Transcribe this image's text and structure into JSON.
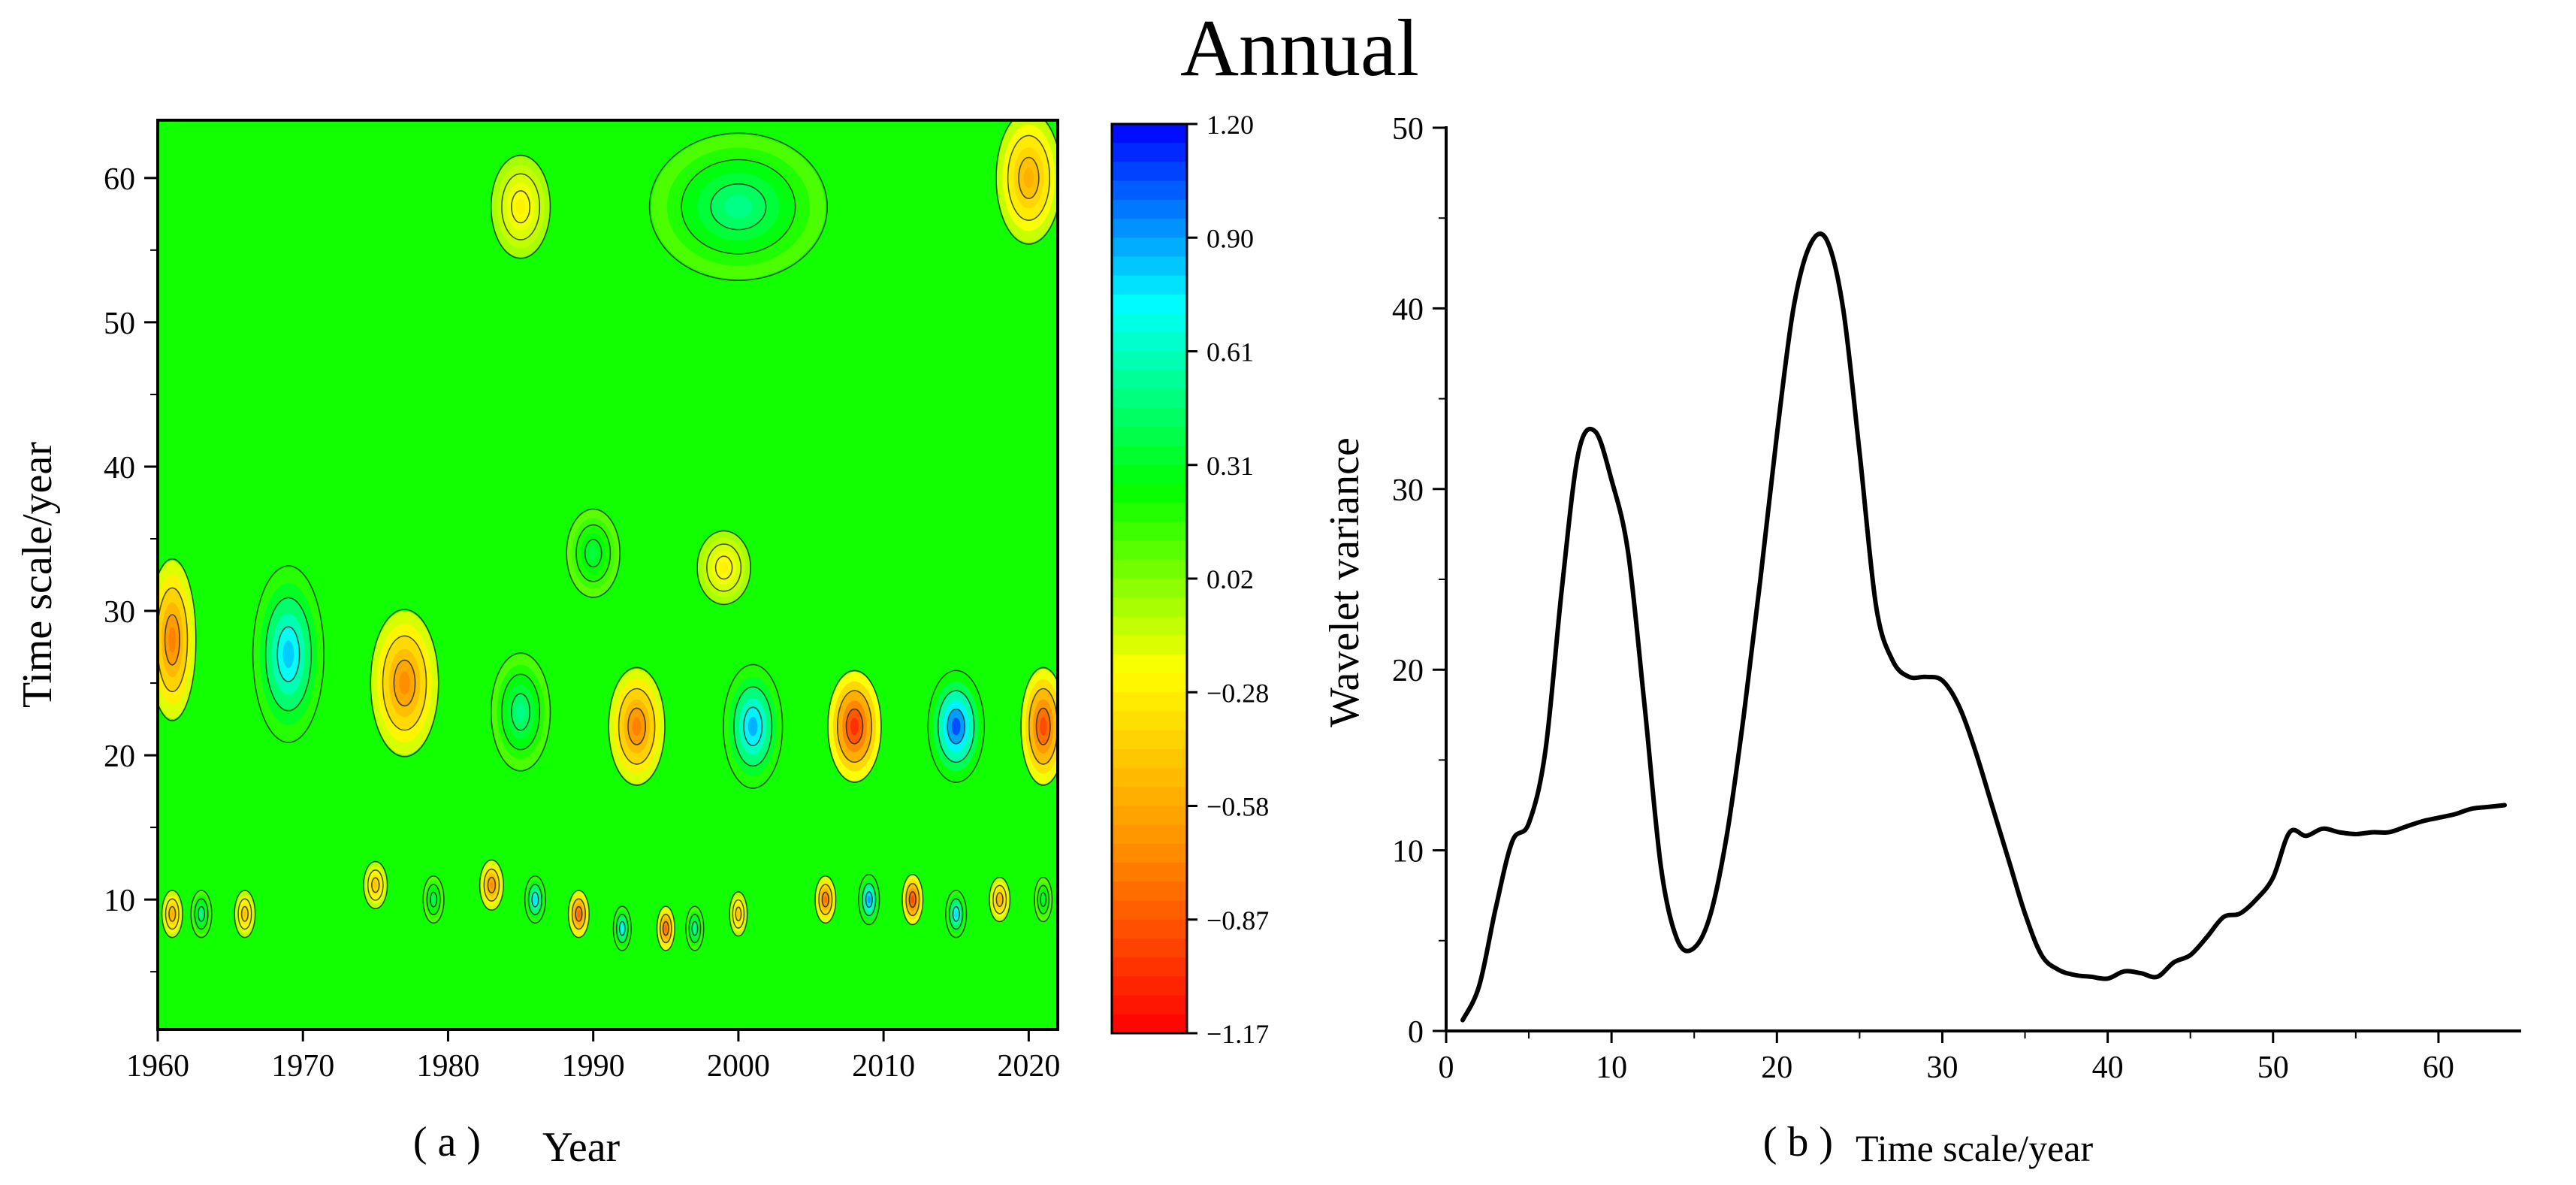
{
  "title": "Annual",
  "colors": {
    "colormap": [
      "#ff0000",
      "#ff8c00",
      "#ffff00",
      "#00ff00",
      "#00ffff",
      "#0000ff"
    ],
    "field_background": "#11ff00",
    "line": "#000000"
  },
  "chart_data": [
    {
      "type": "heatmap",
      "panel": "(a)",
      "panel_label": "( a )",
      "xlabel": "Year",
      "ylabel": "Time scale/year",
      "xlim": [
        1960,
        2022
      ],
      "ylim": [
        1,
        64
      ],
      "xticks": [
        1960,
        1970,
        1980,
        1990,
        2000,
        2010,
        2020
      ],
      "yticks": [
        10,
        20,
        30,
        40,
        50,
        60
      ],
      "colorbar": {
        "ticks": [
          "1.20",
          "0.90",
          "0.61",
          "0.31",
          "0.02",
          "−0.28",
          "−0.58",
          "−0.87",
          "−1.17"
        ],
        "range": [
          -1.17,
          1.2
        ]
      },
      "features": [
        {
          "year": 1961,
          "scale": 28,
          "value": -0.8,
          "sy": 1.6,
          "ss": 5.5
        },
        {
          "year": 1969,
          "scale": 27,
          "value": 0.9,
          "sy": 2.4,
          "ss": 6.0
        },
        {
          "year": 1977,
          "scale": 25,
          "value": -0.75,
          "sy": 2.3,
          "ss": 5.0
        },
        {
          "year": 1985,
          "scale": 23,
          "value": 0.55,
          "sy": 2.0,
          "ss": 4.0
        },
        {
          "year": 1993,
          "scale": 22,
          "value": -0.8,
          "sy": 1.9,
          "ss": 4.0
        },
        {
          "year": 2001,
          "scale": 22,
          "value": 0.95,
          "sy": 2.0,
          "ss": 4.2
        },
        {
          "year": 2008,
          "scale": 22,
          "value": -1.1,
          "sy": 1.8,
          "ss": 3.8
        },
        {
          "year": 2015,
          "scale": 22,
          "value": 1.15,
          "sy": 1.9,
          "ss": 3.8
        },
        {
          "year": 2021,
          "scale": 22,
          "value": -1.0,
          "sy": 1.5,
          "ss": 4.0
        },
        {
          "year": 2000,
          "scale": 58,
          "value": 0.55,
          "sy": 6.0,
          "ss": 5.0
        },
        {
          "year": 2020,
          "scale": 60,
          "value": -0.6,
          "sy": 2.2,
          "ss": 4.5
        },
        {
          "year": 1985,
          "scale": 58,
          "value": -0.3,
          "sy": 2.0,
          "ss": 3.5
        },
        {
          "year": 1999,
          "scale": 33,
          "value": -0.3,
          "sy": 1.8,
          "ss": 2.5
        },
        {
          "year": 1990,
          "scale": 34,
          "value": 0.4,
          "sy": 1.8,
          "ss": 3.0
        },
        {
          "year": 1961,
          "scale": 9,
          "value": -0.6,
          "sy": 0.7,
          "ss": 1.6
        },
        {
          "year": 1963,
          "scale": 9,
          "value": 0.55,
          "sy": 0.7,
          "ss": 1.6
        },
        {
          "year": 1966,
          "scale": 9,
          "value": -0.5,
          "sy": 0.7,
          "ss": 1.6
        },
        {
          "year": 1975,
          "scale": 11,
          "value": -0.5,
          "sy": 0.8,
          "ss": 1.6
        },
        {
          "year": 1979,
          "scale": 10,
          "value": 0.45,
          "sy": 0.7,
          "ss": 1.6
        },
        {
          "year": 1983,
          "scale": 11,
          "value": -0.75,
          "sy": 0.8,
          "ss": 1.7
        },
        {
          "year": 1986,
          "scale": 10,
          "value": 0.85,
          "sy": 0.7,
          "ss": 1.6
        },
        {
          "year": 1989,
          "scale": 9,
          "value": -0.9,
          "sy": 0.7,
          "ss": 1.6
        },
        {
          "year": 1992,
          "scale": 8,
          "value": 0.8,
          "sy": 0.6,
          "ss": 1.5
        },
        {
          "year": 1995,
          "scale": 8,
          "value": -0.9,
          "sy": 0.6,
          "ss": 1.5
        },
        {
          "year": 1997,
          "scale": 8,
          "value": 0.6,
          "sy": 0.6,
          "ss": 1.5
        },
        {
          "year": 2000,
          "scale": 9,
          "value": -0.5,
          "sy": 0.6,
          "ss": 1.5
        },
        {
          "year": 2006,
          "scale": 10,
          "value": -0.85,
          "sy": 0.7,
          "ss": 1.6
        },
        {
          "year": 2009,
          "scale": 10,
          "value": 1.0,
          "sy": 0.7,
          "ss": 1.7
        },
        {
          "year": 2012,
          "scale": 10,
          "value": -1.0,
          "sy": 0.7,
          "ss": 1.7
        },
        {
          "year": 2015,
          "scale": 9,
          "value": 0.85,
          "sy": 0.7,
          "ss": 1.6
        },
        {
          "year": 2018,
          "scale": 10,
          "value": -0.6,
          "sy": 0.7,
          "ss": 1.5
        },
        {
          "year": 2021,
          "scale": 10,
          "value": 0.4,
          "sy": 0.6,
          "ss": 1.5
        }
      ]
    },
    {
      "type": "line",
      "panel": "(b)",
      "panel_label": "( b )",
      "xlabel": "Time scale/year",
      "ylabel": "Wavelet variance",
      "xlim": [
        0,
        65
      ],
      "ylim": [
        0,
        50
      ],
      "xticks": [
        0,
        10,
        20,
        30,
        40,
        50,
        60
      ],
      "yticks": [
        0,
        10,
        20,
        30,
        40,
        50
      ],
      "x": [
        1,
        2,
        3,
        4,
        5,
        6,
        7,
        8,
        9,
        10,
        11,
        12,
        13,
        14,
        15,
        16,
        17,
        18,
        19,
        20,
        21,
        22,
        23,
        24,
        25,
        26,
        27,
        28,
        29,
        30,
        31,
        32,
        33,
        34,
        35,
        36,
        37,
        38,
        39,
        40,
        41,
        42,
        43,
        44,
        45,
        46,
        47,
        48,
        49,
        50,
        51,
        52,
        53,
        54,
        55,
        56,
        57,
        58,
        59,
        60,
        61,
        62,
        63,
        64
      ],
      "y": [
        0.6,
        2.5,
        6.8,
        10.5,
        11.5,
        15.5,
        24.5,
        32.0,
        33.2,
        30.5,
        26.5,
        18.0,
        9.0,
        5.0,
        4.6,
        6.5,
        11.0,
        17.5,
        25.0,
        33.0,
        40.0,
        43.5,
        43.8,
        40.0,
        32.0,
        23.5,
        20.5,
        19.6,
        19.6,
        19.4,
        18.0,
        15.5,
        12.5,
        9.5,
        6.5,
        4.2,
        3.4,
        3.1,
        3.0,
        2.9,
        3.3,
        3.2,
        3.0,
        3.8,
        4.2,
        5.2,
        6.3,
        6.5,
        7.3,
        8.5,
        11.0,
        10.8,
        11.2,
        11.0,
        10.9,
        11.0,
        11.0,
        11.3,
        11.6,
        11.8,
        12.0,
        12.3,
        12.4,
        12.5
      ],
      "series_name": "Wavelet variance"
    }
  ]
}
